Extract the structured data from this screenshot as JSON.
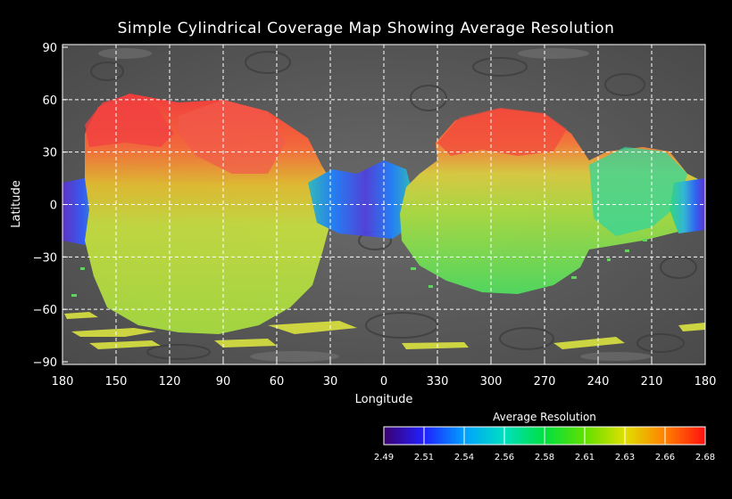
{
  "title": "Simple Cylindrical Coverage Map Showing Average Resolution",
  "axes": {
    "xlabel": "Longitude",
    "ylabel": "Latitude",
    "x_ticks": [
      "180",
      "150",
      "120",
      "90",
      "60",
      "30",
      "0",
      "330",
      "300",
      "270",
      "240",
      "210",
      "180"
    ],
    "y_ticks": [
      "90",
      "60",
      "30",
      "0",
      "−30",
      "−60",
      "−90"
    ],
    "grid": true
  },
  "colorbar": {
    "title": "Average Resolution",
    "ticks": [
      "2.49",
      "2.51",
      "2.54",
      "2.56",
      "2.58",
      "2.61",
      "2.63",
      "2.66",
      "2.68"
    ],
    "stops": [
      "#3c0070",
      "#2020ff",
      "#00a0ff",
      "#00e0c0",
      "#00e040",
      "#60e000",
      "#e0e000",
      "#ff8000",
      "#ff1010"
    ]
  },
  "colors": {
    "background": "#000000",
    "basemap": "#5a5a5a",
    "grid": "#ffffff"
  }
}
